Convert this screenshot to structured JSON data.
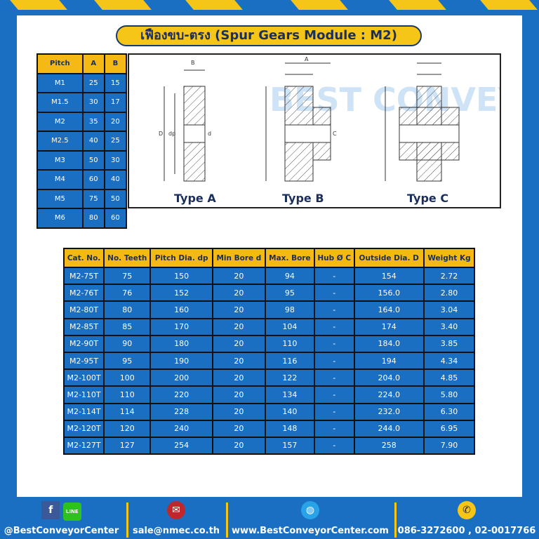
{
  "title": "เฟืองขบ-ตรง (Spur Gears Module : M2)",
  "pitch_table": {
    "headers": [
      "Pitch",
      "A",
      "B"
    ],
    "rows": [
      [
        "M1",
        "25",
        "15"
      ],
      [
        "M1.5",
        "30",
        "17"
      ],
      [
        "M2",
        "35",
        "20"
      ],
      [
        "M2.5",
        "40",
        "25"
      ],
      [
        "M3",
        "50",
        "30"
      ],
      [
        "M4",
        "60",
        "40"
      ],
      [
        "M5",
        "75",
        "50"
      ],
      [
        "M6",
        "80",
        "60"
      ]
    ]
  },
  "diagrams": {
    "types": [
      "Type A",
      "Type B",
      "Type C"
    ],
    "dim_labels": {
      "a": "A",
      "b": "B",
      "d_outer": "D",
      "dp": "dp",
      "d": "d",
      "c": "C"
    },
    "watermark": "BEST CONVEYOR CENTER"
  },
  "spec_table": {
    "headers": [
      "Cat. No.",
      "No. Teeth",
      "Pitch Dia. dp",
      "Min Bore d",
      "Max. Bore",
      "Hub Ø C",
      "Outside Dia. D",
      "Weight Kg"
    ],
    "rows": [
      [
        "M2-75T",
        "75",
        "150",
        "20",
        "94",
        "-",
        "154",
        "2.72"
      ],
      [
        "M2-76T",
        "76",
        "152",
        "20",
        "95",
        "-",
        "156.0",
        "2.80"
      ],
      [
        "M2-80T",
        "80",
        "160",
        "20",
        "98",
        "-",
        "164.0",
        "3.04"
      ],
      [
        "M2-85T",
        "85",
        "170",
        "20",
        "104",
        "-",
        "174",
        "3.40"
      ],
      [
        "M2-90T",
        "90",
        "180",
        "20",
        "110",
        "-",
        "184.0",
        "3.85"
      ],
      [
        "M2-95T",
        "95",
        "190",
        "20",
        "116",
        "-",
        "194",
        "4.34"
      ],
      [
        "M2-100T",
        "100",
        "200",
        "20",
        "122",
        "-",
        "204.0",
        "4.85"
      ],
      [
        "M2-110T",
        "110",
        "220",
        "20",
        "134",
        "-",
        "224.0",
        "5.80"
      ],
      [
        "M2-114T",
        "114",
        "228",
        "20",
        "140",
        "-",
        "232.0",
        "6.30"
      ],
      [
        "M2-120T",
        "120",
        "240",
        "20",
        "148",
        "-",
        "244.0",
        "6.95"
      ],
      [
        "M2-127T",
        "127",
        "254",
        "20",
        "157",
        "-",
        "258",
        "7.90"
      ]
    ]
  },
  "footer": {
    "social": "@BestConveyorCenter",
    "email": "sale@nmec.co.th",
    "website": "www.BestConveyorCenter.com",
    "phone": "086-3272600 , 02-0017766",
    "line_label": "LINE"
  },
  "colors": {
    "background": "#1b6fc2",
    "accent": "#f5c518",
    "header": "#f5b915"
  }
}
